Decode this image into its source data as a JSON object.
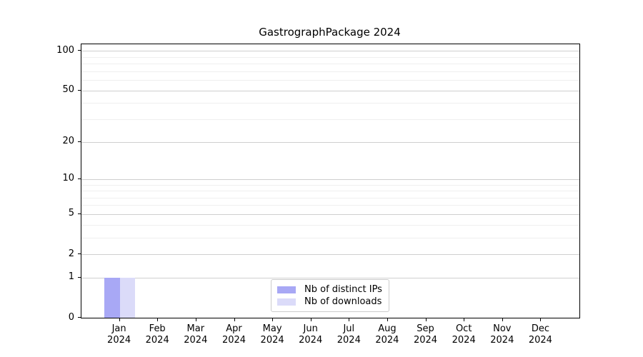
{
  "title": "GastrographPackage 2024",
  "colors": {
    "distinct_ips": "#a8a8f5",
    "downloads": "#dbdbf9",
    "grid_major": "#cfcfcf",
    "grid_minor": "#efefef",
    "spine": "#000000"
  },
  "y_axis": {
    "scale": "log10(1+v)",
    "major_ticks": [
      0,
      1,
      2,
      5,
      10,
      20,
      50,
      100
    ],
    "minor_gridlines": [
      3,
      4,
      6,
      7,
      8,
      9,
      30,
      40,
      60,
      70,
      80,
      90
    ],
    "max_value": 112.3
  },
  "x_axis": {
    "tick_labels": [
      "Jan\n2024",
      "Feb\n2024",
      "Mar\n2024",
      "Apr\n2024",
      "May\n2024",
      "Jun\n2024",
      "Jul\n2024",
      "Aug\n2024",
      "Sep\n2024",
      "Oct\n2024",
      "Nov\n2024",
      "Dec\n2024"
    ]
  },
  "legend": {
    "position": "lower center"
  },
  "chart_data": {
    "type": "bar",
    "title": "GastrographPackage 2024",
    "categories": [
      "Jan 2024",
      "Feb 2024",
      "Mar 2024",
      "Apr 2024",
      "May 2024",
      "Jun 2024",
      "Jul 2024",
      "Aug 2024",
      "Sep 2024",
      "Oct 2024",
      "Nov 2024",
      "Dec 2024"
    ],
    "series": [
      {
        "name": "Nb of distinct IPs",
        "color": "#a8a8f5",
        "values": [
          1,
          0,
          0,
          0,
          0,
          0,
          0,
          0,
          0,
          0,
          0,
          0
        ]
      },
      {
        "name": "Nb of downloads",
        "color": "#dbdbf9",
        "values": [
          1,
          0,
          0,
          0,
          0,
          0,
          0,
          0,
          0,
          0,
          0,
          0
        ]
      }
    ],
    "xlabel": "",
    "ylabel": "",
    "yscale": "log1p",
    "ylim": [
      0,
      112.3
    ],
    "grid": "horizontal",
    "legend_position": "lower center"
  }
}
